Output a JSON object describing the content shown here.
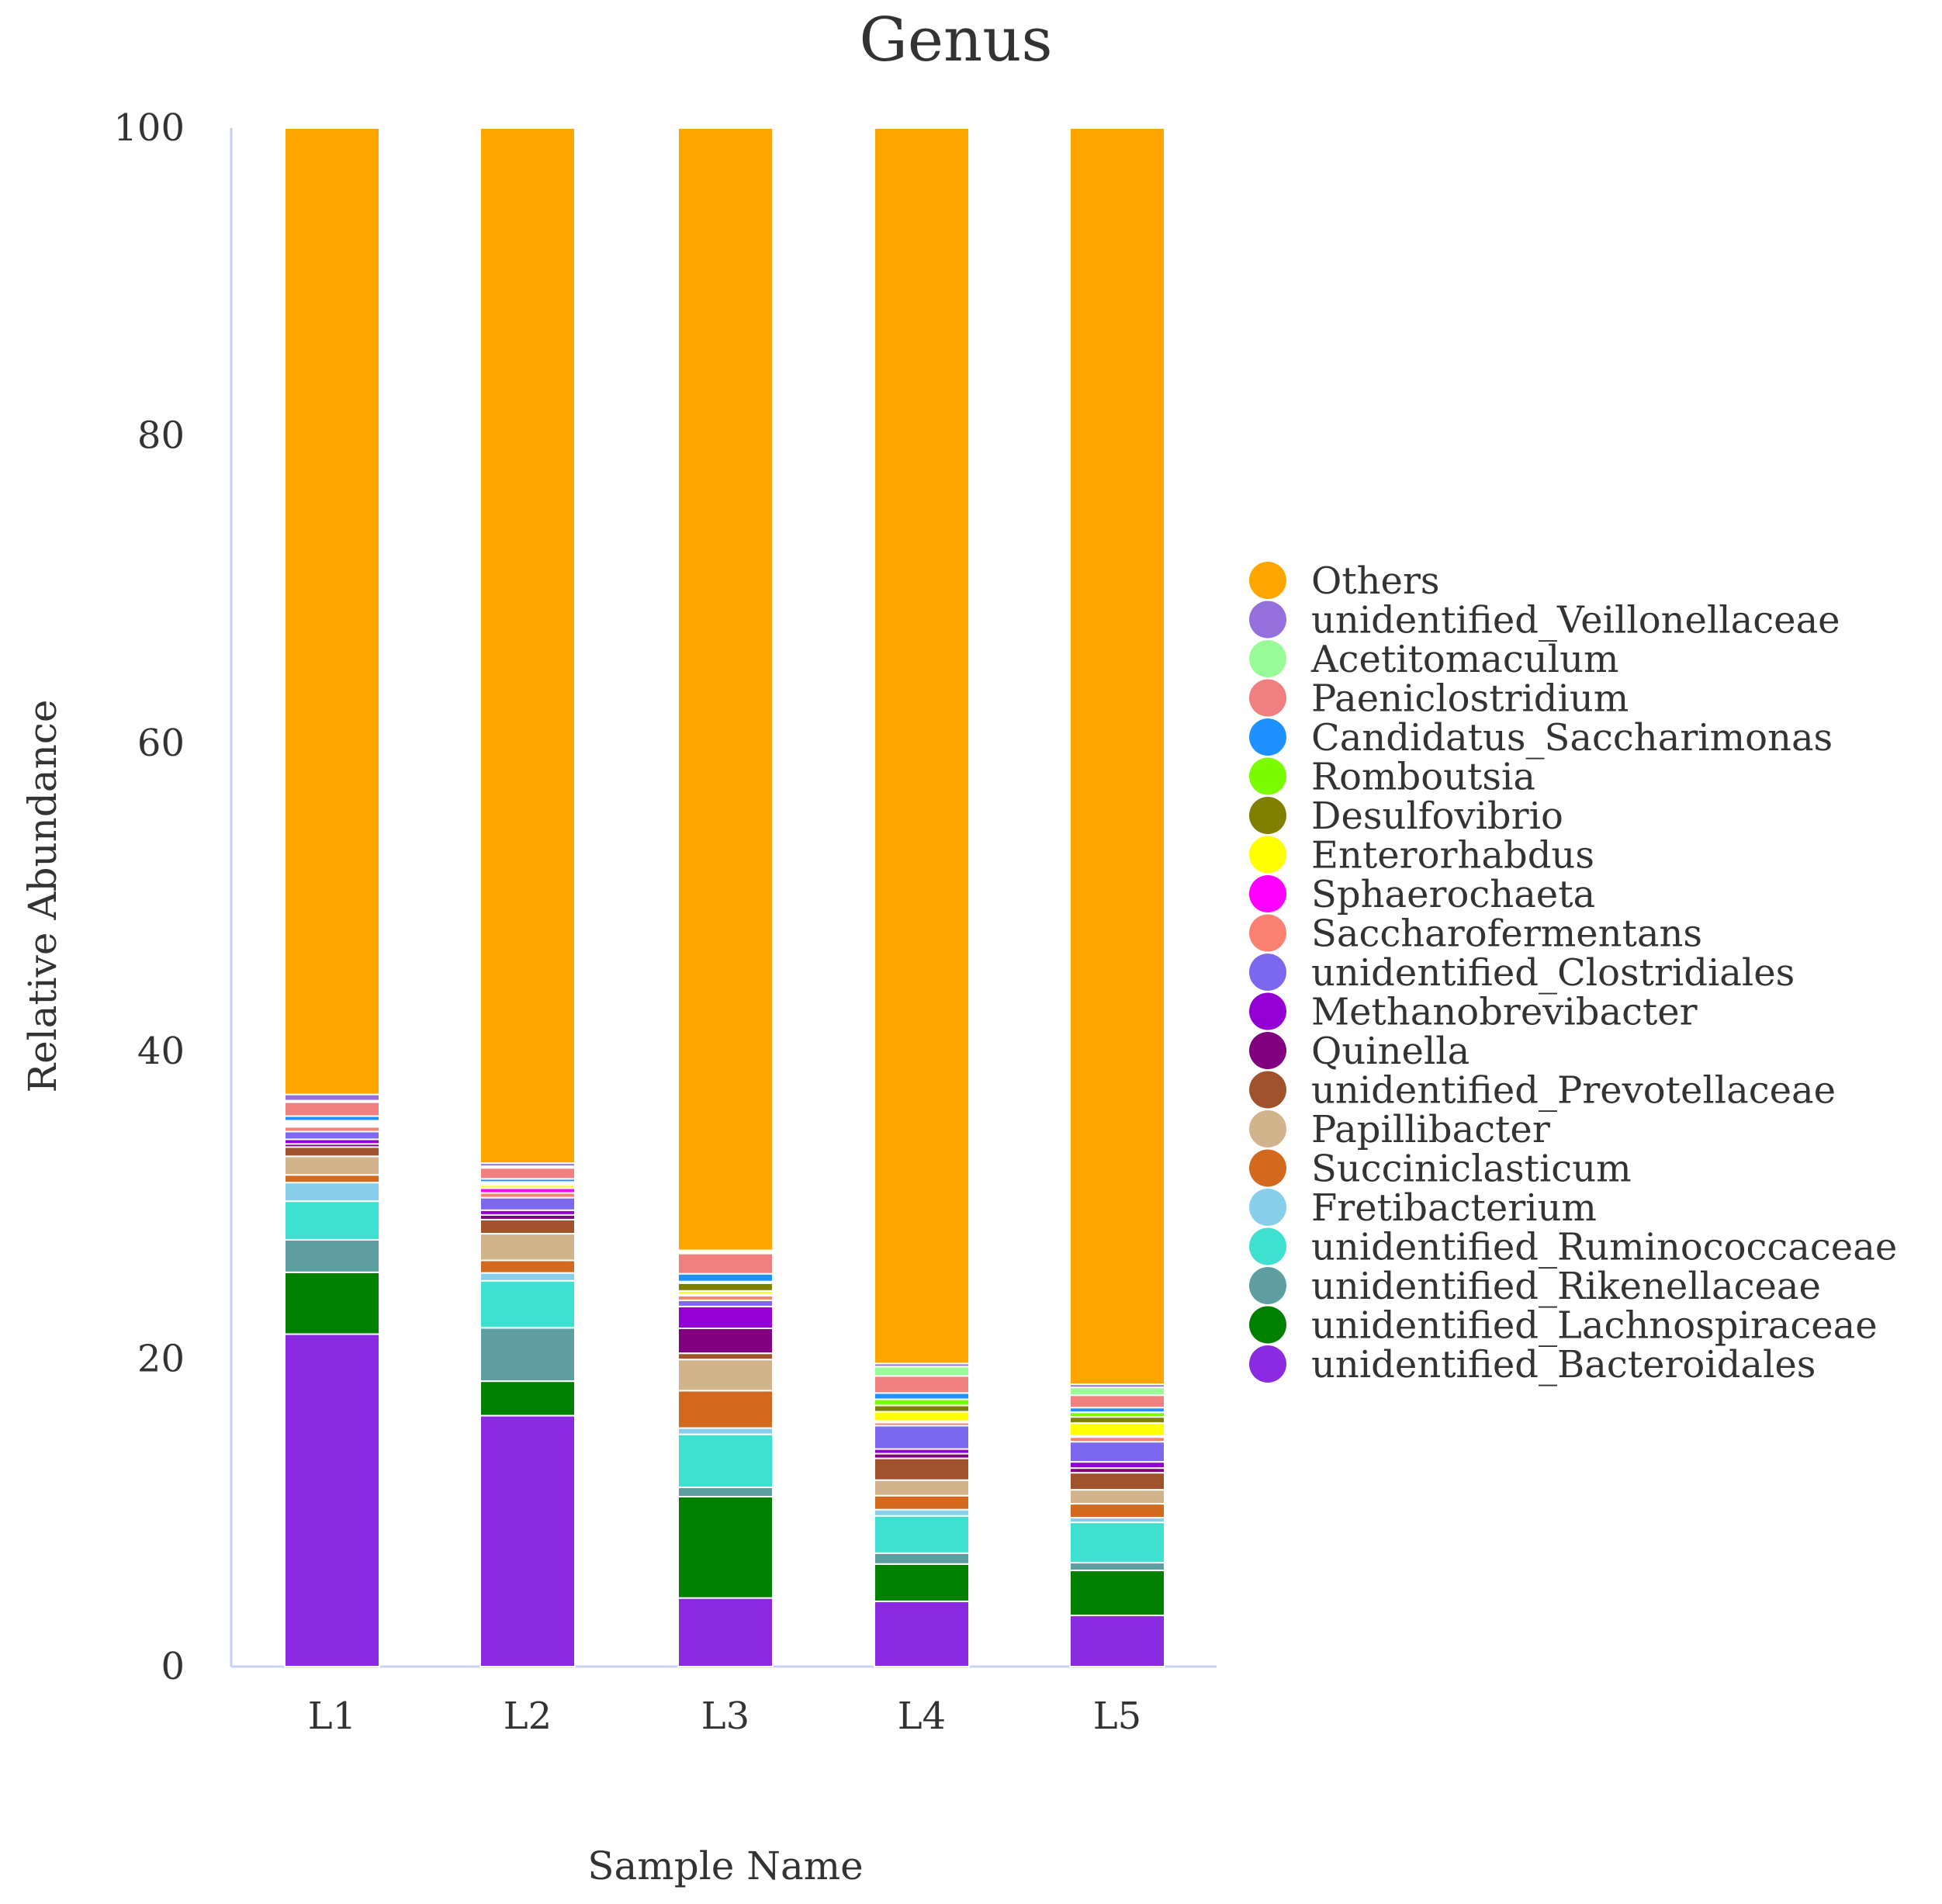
{
  "chart_data": {
    "type": "bar",
    "stacked": true,
    "title": "Genus",
    "xlabel": "Sample Name",
    "ylabel": "Relative Abundance",
    "ylim": [
      0,
      100
    ],
    "yticks": [
      "0",
      "20",
      "40",
      "60",
      "80",
      "100"
    ],
    "categories": [
      "L1",
      "L2",
      "L3",
      "L4",
      "L5"
    ],
    "legend_position": "right",
    "series": [
      {
        "name": "unidentified_Bacteroidales",
        "color": "#8a2be2",
        "values": [
          21.5,
          16.0,
          4.4,
          4.2,
          3.3
        ]
      },
      {
        "name": "unidentified_Lachnospiraceae",
        "color": "#008000",
        "values": [
          4.0,
          2.2,
          6.5,
          2.4,
          2.9
        ]
      },
      {
        "name": "unidentified_Rikenellaceae",
        "color": "#5f9ea0",
        "values": [
          2.1,
          3.4,
          0.6,
          0.7,
          0.5
        ]
      },
      {
        "name": "unidentified_Ruminococcaceae",
        "color": "#40e0d0",
        "values": [
          2.5,
          3.0,
          3.4,
          2.4,
          2.6
        ]
      },
      {
        "name": "Fretibacterium",
        "color": "#87ceeb",
        "values": [
          1.2,
          0.5,
          0.4,
          0.4,
          0.3
        ]
      },
      {
        "name": "Succiniclasticum",
        "color": "#d2691e",
        "values": [
          0.5,
          0.8,
          2.4,
          0.9,
          0.9
        ]
      },
      {
        "name": "Papillibacter",
        "color": "#d2b48c",
        "values": [
          1.2,
          1.7,
          2.0,
          1.0,
          0.9
        ]
      },
      {
        "name": "unidentified_Prevotellaceae",
        "color": "#a0522d",
        "values": [
          0.6,
          0.9,
          0.4,
          1.4,
          1.1
        ]
      },
      {
        "name": "Quinella",
        "color": "#800080",
        "values": [
          0.2,
          0.3,
          1.6,
          0.3,
          0.3
        ]
      },
      {
        "name": "Methanobrevibacter",
        "color": "#9400d3",
        "values": [
          0.3,
          0.3,
          1.4,
          0.3,
          0.4
        ]
      },
      {
        "name": "unidentified_Clostridiales",
        "color": "#7b68ee",
        "values": [
          0.5,
          0.8,
          0.4,
          1.5,
          1.3
        ]
      },
      {
        "name": "Saccharofermentans",
        "color": "#fa8072",
        "values": [
          0.3,
          0.3,
          0.3,
          0.2,
          0.3
        ]
      },
      {
        "name": "Sphaerochaeta",
        "color": "#ff00ff",
        "values": [
          0.1,
          0.3,
          0.1,
          0.1,
          0.1
        ]
      },
      {
        "name": "Enterorhabdus",
        "color": "#ffff00",
        "values": [
          0.1,
          0.2,
          0.2,
          0.6,
          0.8
        ]
      },
      {
        "name": "Desulfovibrio",
        "color": "#808000",
        "values": [
          0.1,
          0.1,
          0.5,
          0.4,
          0.4
        ]
      },
      {
        "name": "Romboutsia",
        "color": "#7cfc00",
        "values": [
          0.1,
          0.1,
          0.1,
          0.4,
          0.3
        ]
      },
      {
        "name": "Candidatus_Saccharimonas",
        "color": "#1e90ff",
        "values": [
          0.3,
          0.2,
          0.5,
          0.4,
          0.3
        ]
      },
      {
        "name": "Paeniclostridium",
        "color": "#f08080",
        "values": [
          0.9,
          0.7,
          1.3,
          1.1,
          0.8
        ]
      },
      {
        "name": "Acetitomaculum",
        "color": "#98fb98",
        "values": [
          0.1,
          0.1,
          0.1,
          0.6,
          0.5
        ]
      },
      {
        "name": "unidentified_Veillonellaceae",
        "color": "#9370db",
        "values": [
          0.4,
          0.2,
          0.1,
          0.2,
          0.2
        ]
      },
      {
        "name": "Others",
        "color": "#ffa500",
        "values": [
          62.5,
          66.0,
          72.0,
          79.5,
          81.0
        ]
      }
    ]
  }
}
